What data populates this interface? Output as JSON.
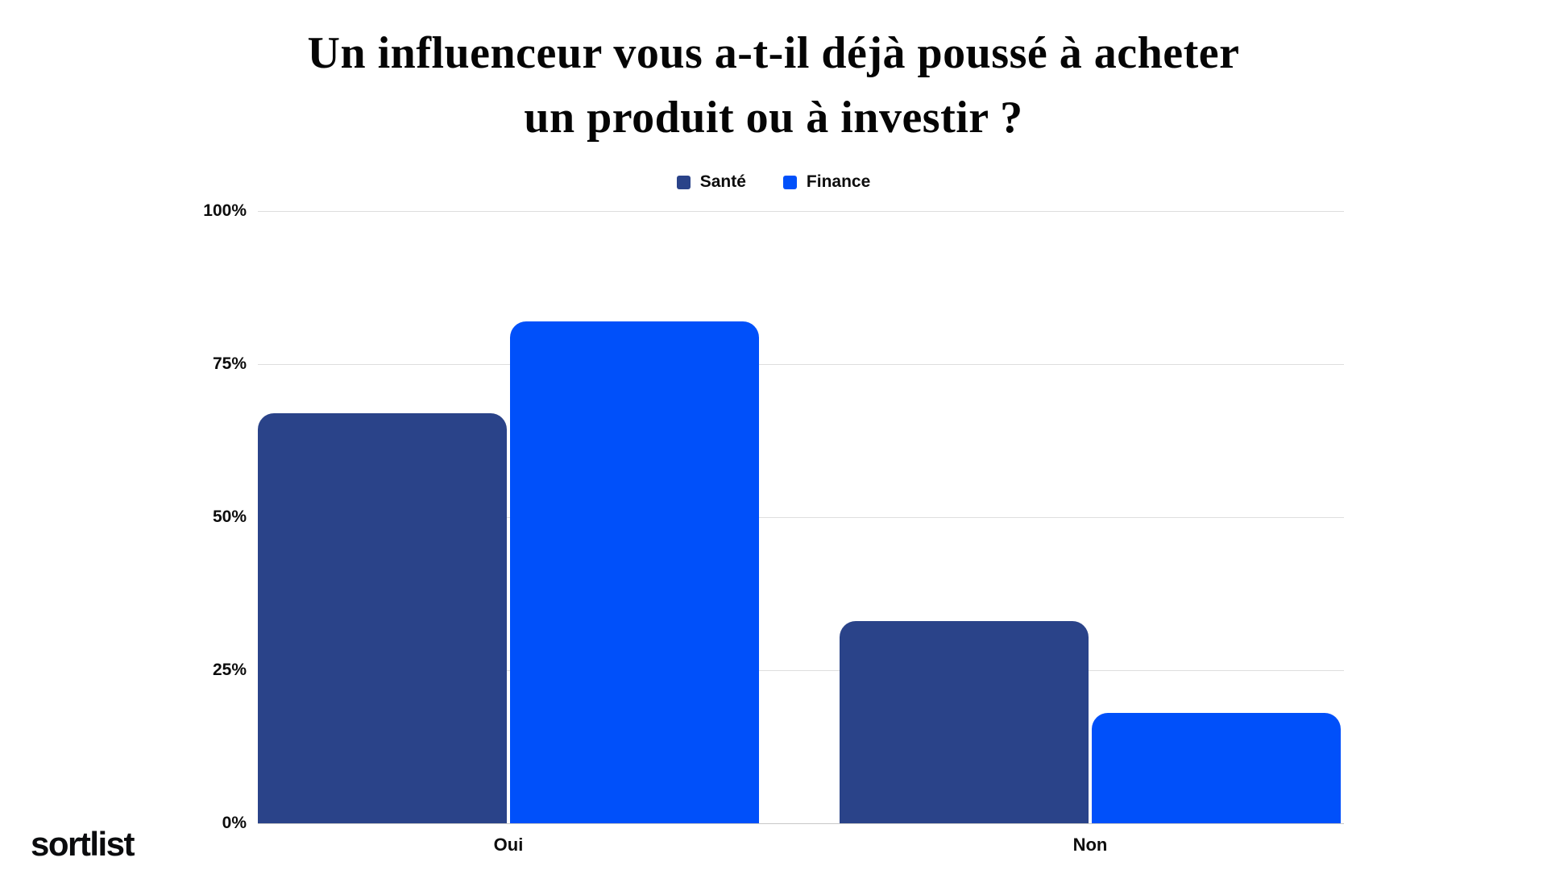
{
  "title": {
    "line1": "Un influenceur vous a-t-il déjà poussé à acheter",
    "line2": "un produit ou à investir ?"
  },
  "logo_text": "sortlist",
  "colors": {
    "sante": "#2a4389",
    "finance": "#0050fa",
    "gridline": "#dedede",
    "baseline": "#c8c8c8",
    "text": "#0d0d0d"
  },
  "chart_data": {
    "type": "bar",
    "title": "Un influenceur vous a-t-il déjà poussé à acheter un produit ou à investir ?",
    "categories": [
      "Oui",
      "Non"
    ],
    "series": [
      {
        "name": "Santé",
        "color": "#2a4389",
        "values": [
          67,
          33
        ]
      },
      {
        "name": "Finance",
        "color": "#0050fa",
        "values": [
          82,
          18
        ]
      }
    ],
    "xlabel": "",
    "ylabel": "",
    "ylim": [
      0,
      100
    ],
    "yticks_labels": [
      "100%",
      "75%",
      "50%",
      "25%",
      "0%"
    ],
    "grid": true,
    "legend_position": "top"
  }
}
